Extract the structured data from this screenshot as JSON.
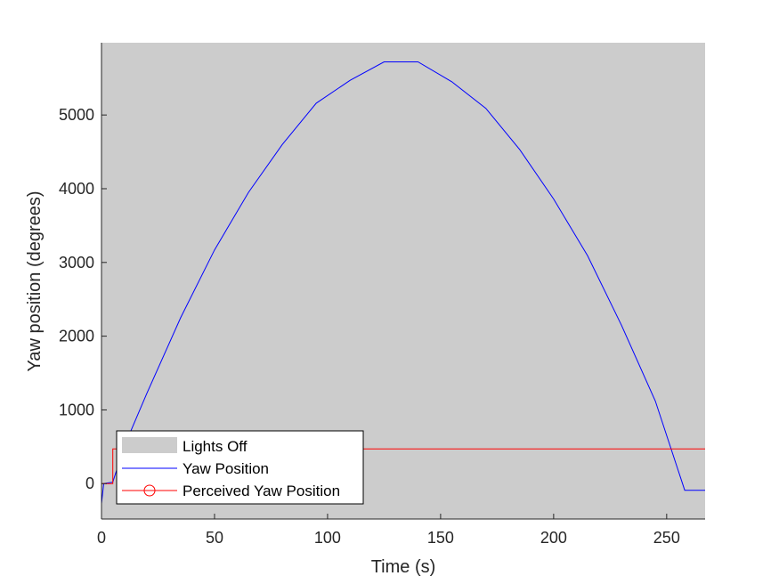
{
  "chart_data": {
    "type": "line",
    "title": "",
    "xlabel": "Time (s)",
    "ylabel": "Yaw position (degrees)",
    "xlim": [
      0,
      267
    ],
    "ylim": [
      -480,
      5980
    ],
    "xticks": [
      0,
      50,
      100,
      150,
      200,
      250
    ],
    "yticks": [
      0,
      1000,
      2000,
      3000,
      4000,
      5000
    ],
    "grid": false,
    "legend_position": "bottom-left",
    "shaded_regions": [
      {
        "name": "Lights Off",
        "x_start": 0,
        "x_end": 267,
        "color": "#cccccc"
      }
    ],
    "series": [
      {
        "name": "Yaw Position",
        "color": "#0000ff",
        "marker": "none",
        "x": [
          0,
          1,
          5,
          10,
          20,
          35,
          50,
          65,
          80,
          95,
          110,
          125,
          140,
          155,
          170,
          185,
          200,
          215,
          230,
          245,
          258,
          267
        ],
        "y": [
          -270,
          0,
          20,
          500,
          1220,
          2250,
          3170,
          3950,
          4600,
          5160,
          5470,
          5720,
          5720,
          5450,
          5090,
          4530,
          3860,
          3090,
          2150,
          1120,
          -90,
          -90
        ]
      },
      {
        "name": "Perceived Yaw Position",
        "color": "#ff0000",
        "marker": "circle",
        "x": [
          0,
          5,
          5,
          267
        ],
        "y": [
          0,
          0,
          470,
          470
        ]
      }
    ]
  }
}
